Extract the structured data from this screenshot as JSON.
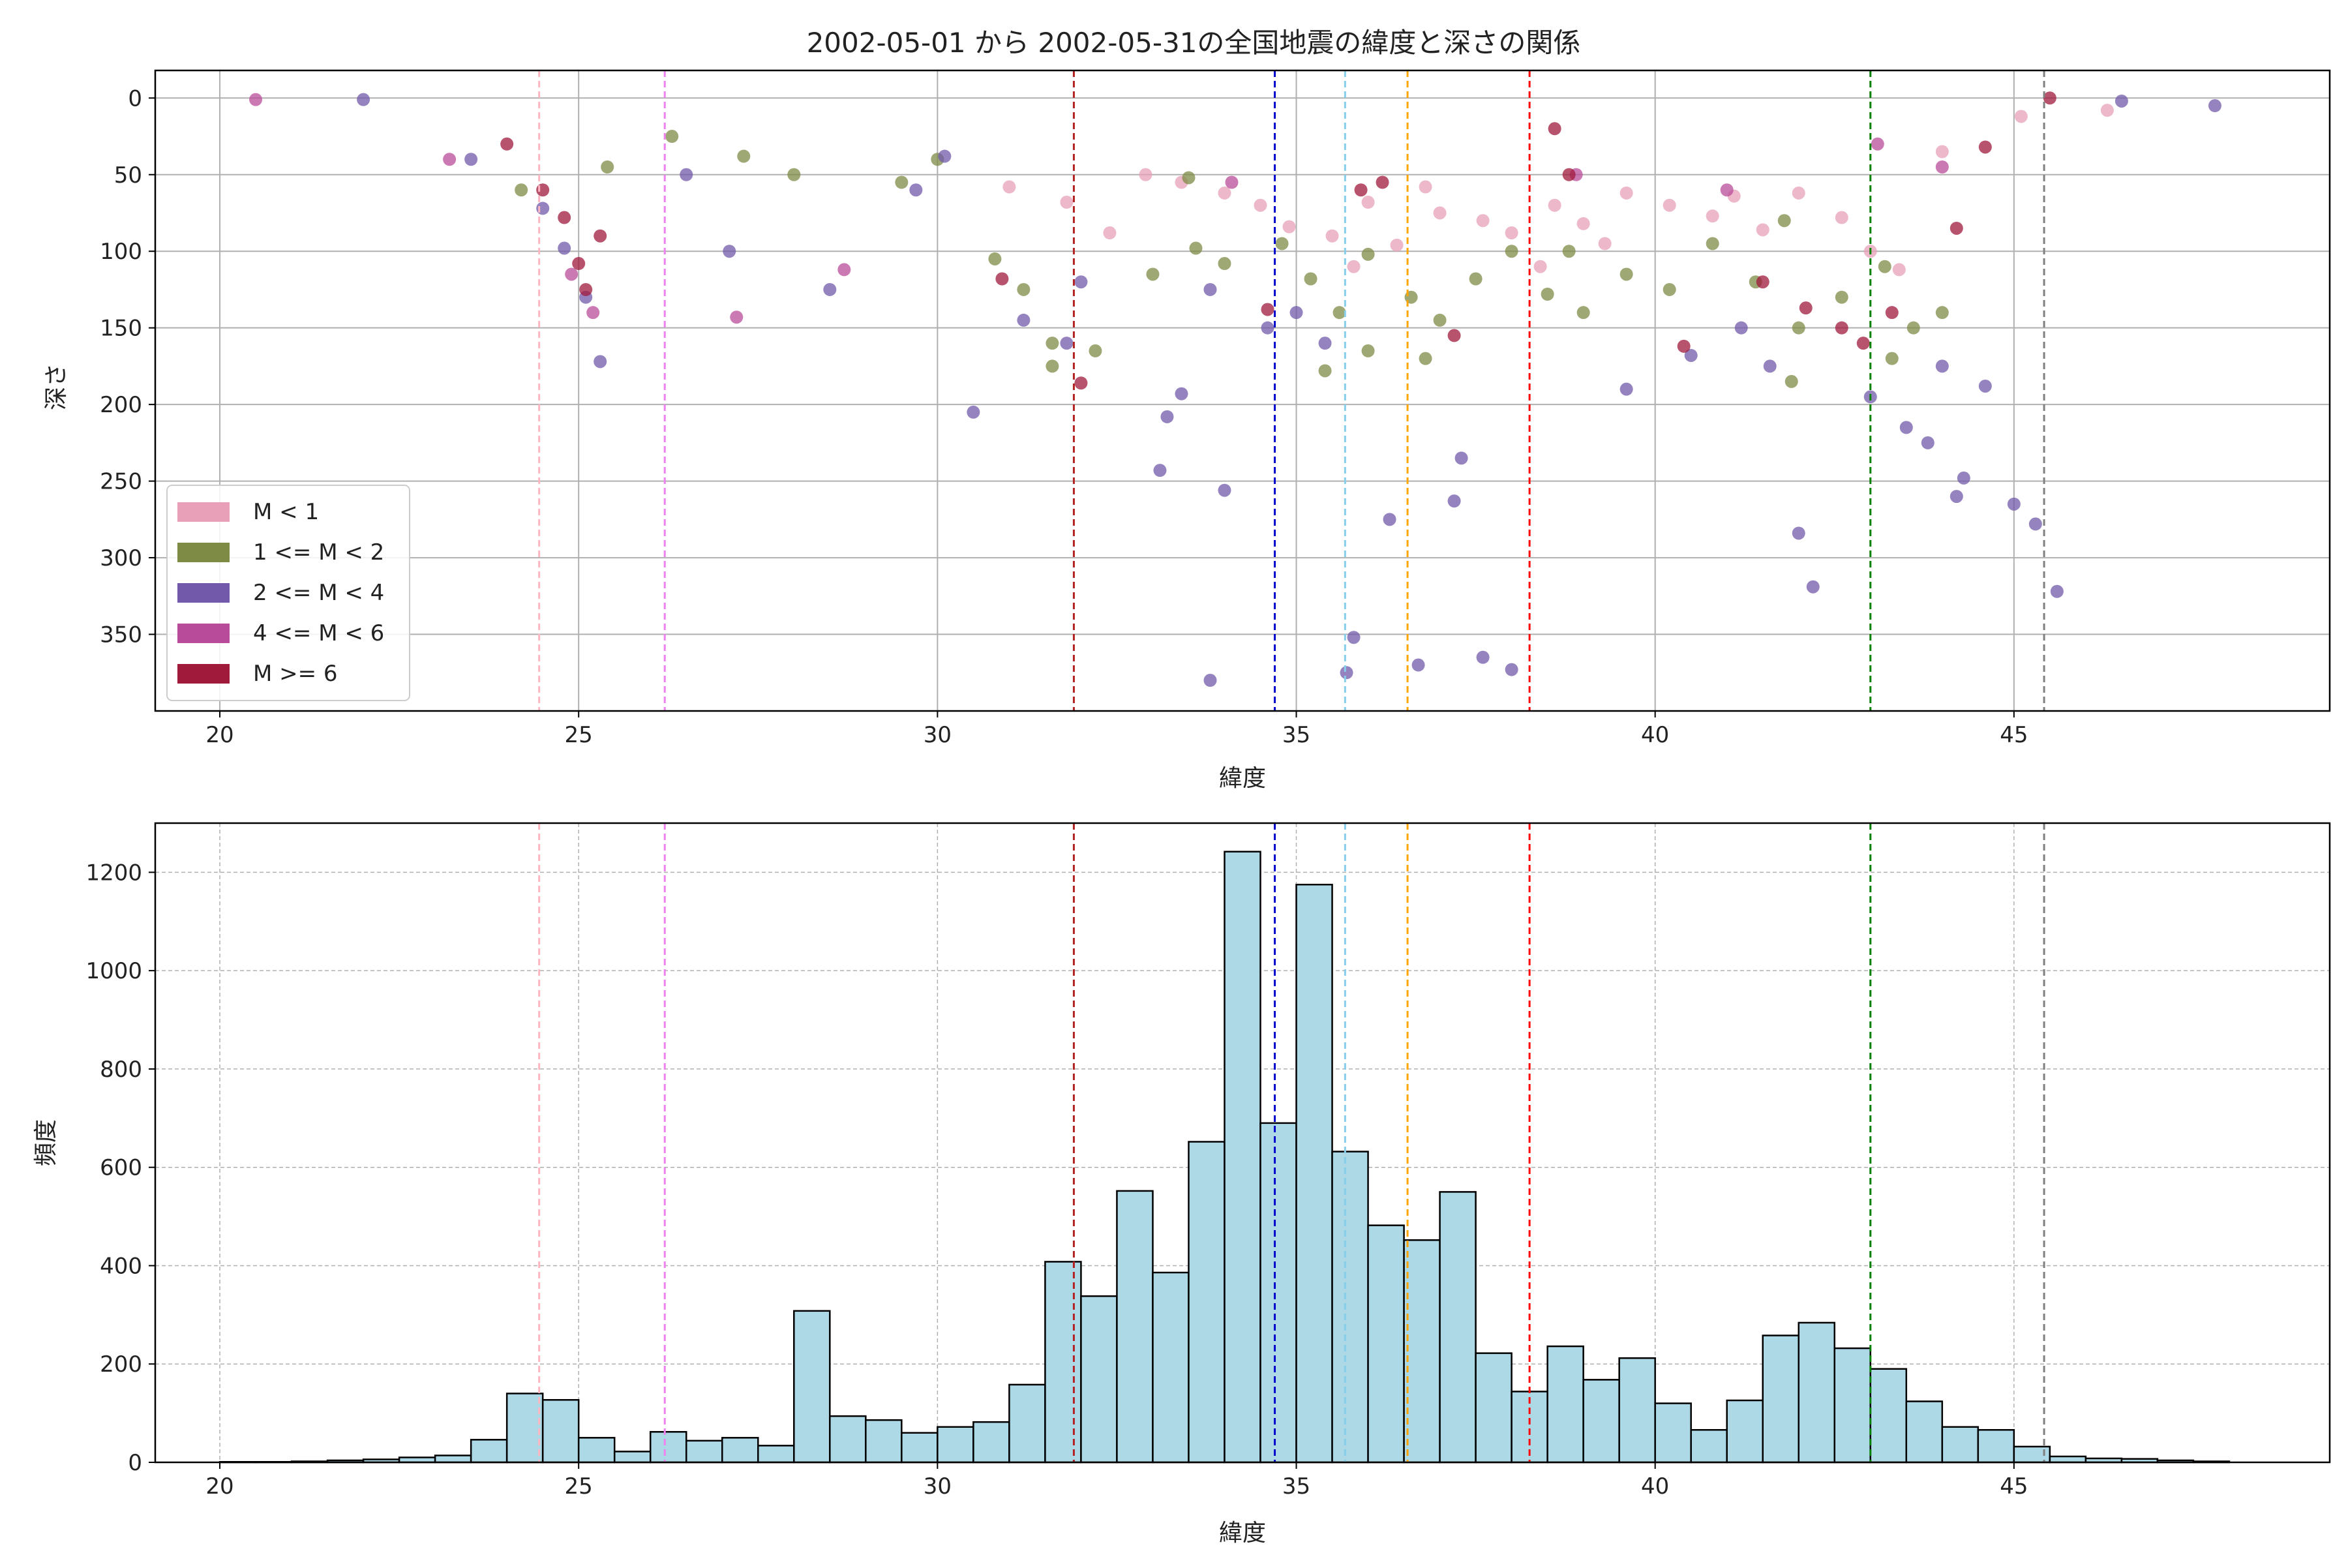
{
  "chart_data": [
    {
      "type": "scatter",
      "title": "2002-05-01 から 2002-05-31の全国地震の緯度と深さの関係",
      "xlabel": "緯度",
      "ylabel": "深さ",
      "xlim": [
        19.1,
        49.4
      ],
      "ylim": [
        400,
        -18
      ],
      "y_inverted": true,
      "grid": true,
      "xticks": [
        20,
        25,
        30,
        35,
        40,
        45
      ],
      "yticks": [
        0,
        50,
        100,
        150,
        200,
        250,
        300,
        350
      ],
      "legend_position": "lower-left",
      "series": [
        {
          "name": "M < 1",
          "color": "#e7a0b7",
          "points": [
            [
              33.4,
              55
            ],
            [
              34.0,
              62
            ],
            [
              34.5,
              70
            ],
            [
              34.9,
              84
            ],
            [
              35.5,
              90
            ],
            [
              36.0,
              68
            ],
            [
              36.4,
              96
            ],
            [
              37.0,
              75
            ],
            [
              37.6,
              80
            ],
            [
              38.0,
              88
            ],
            [
              38.6,
              70
            ],
            [
              39.0,
              82
            ],
            [
              39.6,
              62
            ],
            [
              40.2,
              70
            ],
            [
              40.8,
              77
            ],
            [
              41.5,
              86
            ],
            [
              42.0,
              62
            ],
            [
              42.6,
              78
            ],
            [
              43.0,
              100
            ],
            [
              43.4,
              112
            ],
            [
              31.8,
              68
            ],
            [
              32.4,
              88
            ],
            [
              35.8,
              110
            ],
            [
              36.8,
              58
            ],
            [
              39.3,
              95
            ],
            [
              41.1,
              64
            ],
            [
              38.4,
              110
            ],
            [
              44.0,
              35
            ],
            [
              45.1,
              12
            ],
            [
              46.3,
              8
            ],
            [
              31.0,
              58
            ],
            [
              32.9,
              50
            ]
          ]
        },
        {
          "name": "1 <= M < 2",
          "color": "#7d8b45",
          "points": [
            [
              24.2,
              60
            ],
            [
              25.4,
              45
            ],
            [
              26.3,
              25
            ],
            [
              27.3,
              38
            ],
            [
              28.0,
              50
            ],
            [
              29.5,
              55
            ],
            [
              30.0,
              40
            ],
            [
              30.8,
              105
            ],
            [
              31.2,
              125
            ],
            [
              31.6,
              160
            ],
            [
              32.2,
              165
            ],
            [
              33.0,
              115
            ],
            [
              33.6,
              98
            ],
            [
              34.0,
              108
            ],
            [
              34.8,
              95
            ],
            [
              35.2,
              118
            ],
            [
              35.6,
              140
            ],
            [
              36.0,
              165
            ],
            [
              36.6,
              130
            ],
            [
              37.0,
              145
            ],
            [
              37.5,
              118
            ],
            [
              38.0,
              100
            ],
            [
              38.5,
              128
            ],
            [
              39.0,
              140
            ],
            [
              39.6,
              115
            ],
            [
              40.2,
              125
            ],
            [
              40.8,
              95
            ],
            [
              41.4,
              120
            ],
            [
              42.0,
              150
            ],
            [
              42.6,
              130
            ],
            [
              43.2,
              110
            ],
            [
              43.6,
              150
            ],
            [
              44.0,
              140
            ],
            [
              43.3,
              170
            ],
            [
              31.6,
              175
            ],
            [
              33.5,
              52
            ],
            [
              36.0,
              102
            ],
            [
              38.8,
              100
            ],
            [
              41.8,
              80
            ],
            [
              35.4,
              178
            ],
            [
              36.8,
              170
            ],
            [
              41.9,
              185
            ]
          ]
        },
        {
          "name": "2 <= M < 4",
          "color": "#7259aa",
          "points": [
            [
              23.5,
              40
            ],
            [
              24.5,
              72
            ],
            [
              24.8,
              98
            ],
            [
              25.1,
              130
            ],
            [
              25.3,
              172
            ],
            [
              26.5,
              50
            ],
            [
              27.1,
              100
            ],
            [
              28.5,
              125
            ],
            [
              29.7,
              60
            ],
            [
              30.1,
              38
            ],
            [
              30.5,
              205
            ],
            [
              31.2,
              145
            ],
            [
              31.8,
              160
            ],
            [
              32.0,
              120
            ],
            [
              33.2,
              208
            ],
            [
              33.4,
              193
            ],
            [
              33.1,
              243
            ],
            [
              33.8,
              125
            ],
            [
              34.0,
              256
            ],
            [
              34.6,
              150
            ],
            [
              35.4,
              160
            ],
            [
              35.7,
              375
            ],
            [
              35.8,
              352
            ],
            [
              36.3,
              275
            ],
            [
              36.7,
              370
            ],
            [
              37.3,
              235
            ],
            [
              37.6,
              365
            ],
            [
              38.0,
              373
            ],
            [
              37.2,
              263
            ],
            [
              39.6,
              190
            ],
            [
              40.5,
              168
            ],
            [
              41.6,
              175
            ],
            [
              42.0,
              284
            ],
            [
              42.2,
              319
            ],
            [
              43.0,
              195
            ],
            [
              43.5,
              215
            ],
            [
              43.8,
              225
            ],
            [
              44.0,
              175
            ],
            [
              44.2,
              260
            ],
            [
              44.3,
              248
            ],
            [
              44.6,
              188
            ],
            [
              45.0,
              265
            ],
            [
              45.3,
              278
            ],
            [
              45.6,
              322
            ],
            [
              47.8,
              5
            ],
            [
              33.8,
              380
            ],
            [
              46.5,
              2
            ],
            [
              22.0,
              1
            ],
            [
              35.0,
              140
            ],
            [
              41.2,
              150
            ]
          ]
        },
        {
          "name": "4 <= M < 6",
          "color": "#b94c9a",
          "points": [
            [
              20.5,
              1
            ],
            [
              23.2,
              40
            ],
            [
              24.9,
              115
            ],
            [
              25.2,
              140
            ],
            [
              27.2,
              143
            ],
            [
              28.7,
              112
            ],
            [
              34.1,
              55
            ],
            [
              38.9,
              50
            ],
            [
              41.0,
              60
            ],
            [
              43.1,
              30
            ],
            [
              44.0,
              45
            ]
          ]
        },
        {
          "name": "M >= 6",
          "color": "#a01a3c",
          "points": [
            [
              24.0,
              30
            ],
            [
              24.5,
              60
            ],
            [
              24.8,
              78
            ],
            [
              25.0,
              108
            ],
            [
              25.1,
              125
            ],
            [
              25.3,
              90
            ],
            [
              32.0,
              186
            ],
            [
              30.9,
              118
            ],
            [
              34.6,
              138
            ],
            [
              35.9,
              60
            ],
            [
              37.2,
              155
            ],
            [
              38.8,
              50
            ],
            [
              40.4,
              162
            ],
            [
              41.5,
              120
            ],
            [
              42.1,
              137
            ],
            [
              42.6,
              150
            ],
            [
              42.9,
              160
            ],
            [
              43.3,
              140
            ],
            [
              44.2,
              85
            ],
            [
              44.6,
              32
            ],
            [
              45.5,
              0
            ],
            [
              38.6,
              20
            ],
            [
              36.2,
              55
            ]
          ]
        }
      ],
      "vlines": [
        {
          "x": 24.45,
          "color": "#ffb6c1"
        },
        {
          "x": 26.2,
          "color": "#ee82ee"
        },
        {
          "x": 31.9,
          "color": "#b22222"
        },
        {
          "x": 34.7,
          "color": "#0000cd"
        },
        {
          "x": 35.68,
          "color": "#87ceeb"
        },
        {
          "x": 36.55,
          "color": "#ffa500"
        },
        {
          "x": 38.25,
          "color": "#ff0000"
        },
        {
          "x": 43.0,
          "color": "#008000"
        },
        {
          "x": 45.42,
          "color": "#808080"
        }
      ]
    },
    {
      "type": "bar",
      "title": "",
      "xlabel": "緯度",
      "ylabel": "頻度",
      "xlim": [
        19.1,
        49.4
      ],
      "ylim": [
        0,
        1300
      ],
      "grid": true,
      "xticks": [
        20,
        25,
        30,
        35,
        40,
        45
      ],
      "yticks": [
        0,
        200,
        400,
        600,
        800,
        1000,
        1200
      ],
      "bar_color": "#add8e6",
      "bin_edges": [
        20.0,
        20.5,
        21.0,
        21.5,
        22.0,
        22.5,
        23.0,
        23.5,
        24.0,
        24.5,
        25.0,
        25.5,
        26.0,
        26.5,
        27.0,
        27.5,
        28.0,
        28.5,
        29.0,
        29.5,
        30.0,
        30.5,
        31.0,
        31.5,
        32.0,
        32.5,
        33.0,
        33.5,
        34.0,
        34.5,
        35.0,
        35.5,
        36.0,
        36.5,
        37.0,
        37.5,
        38.0,
        38.5,
        39.0,
        39.5,
        40.0,
        40.5,
        41.0,
        41.5,
        42.0,
        42.5,
        43.0,
        43.5,
        44.0,
        44.5,
        45.0,
        45.5,
        46.0,
        46.5,
        47.0,
        47.5,
        48.0
      ],
      "values": [
        1,
        1,
        2,
        4,
        6,
        10,
        14,
        46,
        140,
        127,
        50,
        22,
        62,
        44,
        50,
        34,
        308,
        94,
        86,
        60,
        72,
        82,
        158,
        408,
        338,
        552,
        386,
        652,
        1242,
        690,
        1175,
        632,
        482,
        452,
        550,
        222,
        144,
        236,
        168,
        212,
        120,
        66,
        126,
        258,
        284,
        232,
        190,
        124,
        72,
        66,
        32,
        12,
        8,
        7,
        4,
        2
      ],
      "vlines": [
        {
          "x": 24.45,
          "color": "#ffb6c1"
        },
        {
          "x": 26.2,
          "color": "#ee82ee"
        },
        {
          "x": 31.9,
          "color": "#b22222"
        },
        {
          "x": 34.7,
          "color": "#0000cd"
        },
        {
          "x": 35.68,
          "color": "#87ceeb"
        },
        {
          "x": 36.55,
          "color": "#ffa500"
        },
        {
          "x": 38.25,
          "color": "#ff0000"
        },
        {
          "x": 43.0,
          "color": "#008000"
        },
        {
          "x": 45.42,
          "color": "#808080"
        }
      ]
    }
  ]
}
